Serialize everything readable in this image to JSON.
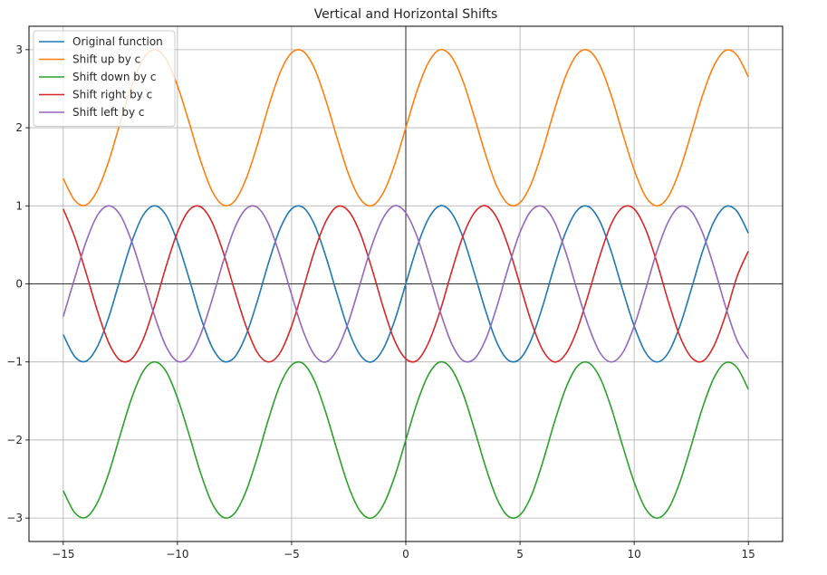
{
  "chart_data": {
    "type": "line",
    "title": "Vertical and Horizontal Shifts",
    "xlabel": "",
    "ylabel": "",
    "xlim": [
      -16.5,
      16.5
    ],
    "ylim": [
      -3.3,
      3.3
    ],
    "xticks": [
      -15,
      -10,
      -5,
      0,
      5,
      10,
      15
    ],
    "xtick_labels": [
      "−15",
      "−10",
      "−5",
      "0",
      "5",
      "10",
      "15"
    ],
    "yticks": [
      -3,
      -2,
      -1,
      0,
      1,
      2,
      3
    ],
    "ytick_labels": [
      "−3",
      "−2",
      "−1",
      "0",
      "1",
      "2",
      "3"
    ],
    "grid": true,
    "legend_position": "upper-left",
    "x": [
      -15,
      -14.5,
      -14,
      -13.5,
      -13,
      -12.5,
      -12,
      -11.5,
      -11,
      -10.5,
      -10,
      -9.5,
      -9,
      -8.5,
      -8,
      -7.5,
      -7,
      -6.5,
      -6,
      -5.5,
      -5,
      -4.5,
      -4,
      -3.5,
      -3,
      -2.5,
      -2,
      -1.5,
      -1,
      -0.5,
      0,
      0.5,
      1,
      1.5,
      2,
      2.5,
      3,
      3.5,
      4,
      4.5,
      5,
      5.5,
      6,
      6.5,
      7,
      7.5,
      8,
      8.5,
      9,
      9.5,
      10,
      10.5,
      11,
      11.5,
      12,
      12.5,
      13,
      13.5,
      14,
      14.5,
      15
    ],
    "series": [
      {
        "name": "Original function",
        "color": "#1f77b4",
        "values": [
          -0.65,
          -0.93,
          -0.99,
          -0.8,
          -0.42,
          0.07,
          0.54,
          0.88,
          1.0,
          0.88,
          0.54,
          0.08,
          -0.41,
          -0.8,
          -0.99,
          -0.94,
          -0.66,
          -0.22,
          0.28,
          0.71,
          0.96,
          0.98,
          0.76,
          0.35,
          -0.14,
          -0.6,
          -0.91,
          -1.0,
          -0.84,
          -0.48,
          0.0,
          0.48,
          0.84,
          1.0,
          0.91,
          0.6,
          0.14,
          -0.35,
          -0.76,
          -0.98,
          -0.96,
          -0.71,
          -0.28,
          0.22,
          0.66,
          0.94,
          0.99,
          0.8,
          0.41,
          -0.08,
          -0.54,
          -0.88,
          -1.0,
          -0.88,
          -0.54,
          -0.07,
          0.42,
          0.8,
          0.99,
          0.93,
          0.65
        ]
      },
      {
        "name": "Shift up by c",
        "color": "#ff7f0e",
        "values": [
          1.35,
          1.07,
          1.01,
          1.2,
          1.58,
          2.07,
          2.54,
          2.88,
          3.0,
          2.88,
          2.54,
          2.08,
          1.59,
          1.2,
          1.01,
          1.06,
          1.34,
          1.78,
          2.28,
          2.71,
          2.96,
          2.98,
          2.76,
          2.35,
          1.86,
          1.4,
          1.09,
          1.0,
          1.16,
          1.52,
          2.0,
          2.48,
          2.84,
          3.0,
          2.91,
          2.6,
          2.14,
          1.65,
          1.24,
          1.02,
          1.04,
          1.29,
          1.72,
          2.22,
          2.66,
          2.94,
          2.99,
          2.8,
          2.41,
          1.92,
          1.46,
          1.12,
          1.0,
          1.12,
          1.46,
          1.93,
          2.42,
          2.8,
          2.99,
          2.93,
          2.65
        ]
      },
      {
        "name": "Shift down by c",
        "color": "#2ca02c",
        "values": [
          -2.65,
          -2.93,
          -2.99,
          -2.8,
          -2.42,
          -1.93,
          -1.46,
          -1.12,
          -1.0,
          -1.12,
          -1.46,
          -1.92,
          -2.41,
          -2.8,
          -2.99,
          -2.94,
          -2.66,
          -2.22,
          -1.72,
          -1.29,
          -1.04,
          -1.02,
          -1.24,
          -1.65,
          -2.14,
          -2.6,
          -2.91,
          -3.0,
          -2.84,
          -2.48,
          -2.0,
          -1.52,
          -1.16,
          -1.0,
          -1.09,
          -1.4,
          -1.86,
          -2.35,
          -2.76,
          -2.98,
          -2.96,
          -2.71,
          -2.28,
          -1.78,
          -1.34,
          -1.06,
          -1.01,
          -1.2,
          -1.59,
          -2.08,
          -2.54,
          -2.88,
          -3.0,
          -2.88,
          -2.54,
          -2.07,
          -1.58,
          -1.2,
          -1.01,
          -1.07,
          -1.35
        ]
      },
      {
        "name": "Shift right by c",
        "color": "#d62728",
        "values": [
          0.96,
          0.6,
          0.14,
          -0.35,
          -0.76,
          -0.98,
          -0.96,
          -0.71,
          -0.28,
          0.22,
          0.66,
          0.94,
          0.99,
          0.8,
          0.41,
          -0.08,
          -0.54,
          -0.88,
          -1.0,
          -0.88,
          -0.54,
          -0.07,
          0.42,
          0.8,
          0.99,
          0.93,
          0.65,
          0.21,
          -0.29,
          -0.72,
          -0.96,
          -0.98,
          -0.75,
          -0.35,
          0.15,
          0.61,
          0.91,
          1.0,
          0.84,
          0.47,
          -0.01,
          -0.49,
          -0.85,
          -1.0,
          -0.9,
          -0.59,
          -0.13,
          0.36,
          0.77,
          0.98,
          0.96,
          0.7,
          0.27,
          -0.23,
          -0.67,
          -0.94,
          -0.99,
          -0.79,
          -0.4,
          0.09,
          0.42
        ]
      },
      {
        "name": "Shift left by c",
        "color": "#9467bd",
        "values": [
          -0.42,
          0.07,
          0.54,
          0.88,
          1.0,
          0.88,
          0.54,
          0.08,
          -0.41,
          -0.8,
          -0.99,
          -0.94,
          -0.66,
          -0.22,
          0.28,
          0.71,
          0.96,
          0.98,
          0.76,
          0.35,
          -0.14,
          -0.6,
          -0.91,
          -1.0,
          -0.84,
          -0.48,
          0.0,
          0.48,
          0.84,
          1.0,
          0.91,
          0.6,
          0.14,
          -0.35,
          -0.76,
          -0.98,
          -0.96,
          -0.71,
          -0.28,
          0.22,
          0.66,
          0.94,
          0.99,
          0.8,
          0.41,
          -0.08,
          -0.54,
          -0.88,
          -1.0,
          -0.88,
          -0.54,
          -0.07,
          0.42,
          0.8,
          0.99,
          0.93,
          0.65,
          0.21,
          -0.29,
          -0.72,
          -0.96
        ]
      }
    ]
  }
}
